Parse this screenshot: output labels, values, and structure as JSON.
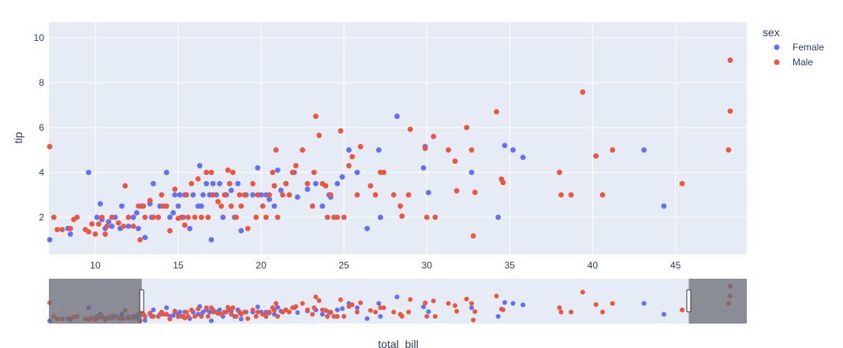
{
  "chart_data": {
    "type": "scatter",
    "xlabel": "total_bill",
    "ylabel": "tip",
    "xlim": [
      7.2,
      49.3
    ],
    "ylim": [
      0.35,
      10.7
    ],
    "xticks": [
      10,
      15,
      20,
      25,
      30,
      35,
      40,
      45
    ],
    "yticks": [
      2,
      4,
      6,
      8,
      10
    ],
    "grid": true,
    "legend": {
      "title": "sex",
      "placement": "top-right"
    },
    "rangeslider": {
      "visible": true,
      "selected_range": [
        12.8,
        45.8
      ]
    },
    "colors": {
      "Female": "#636efa",
      "Male": "#ef553b",
      "plot_bg": "#e5ecf6",
      "mask": "#6b6e74"
    },
    "series": [
      {
        "name": "Female",
        "points": [
          [
            7.25,
            1.0
          ],
          [
            8.35,
            1.5
          ],
          [
            8.5,
            1.25
          ],
          [
            9.6,
            4.0
          ],
          [
            10.1,
            2.0
          ],
          [
            10.3,
            2.6
          ],
          [
            10.4,
            1.9
          ],
          [
            10.6,
            1.5
          ],
          [
            10.8,
            1.8
          ],
          [
            11.0,
            1.6
          ],
          [
            11.2,
            2.0
          ],
          [
            11.5,
            1.5
          ],
          [
            11.6,
            2.5
          ],
          [
            12.0,
            1.6
          ],
          [
            12.3,
            2.0
          ],
          [
            12.5,
            2.2
          ],
          [
            12.6,
            1.5
          ],
          [
            12.8,
            2.5
          ],
          [
            13.0,
            1.1
          ],
          [
            13.3,
            2.6
          ],
          [
            13.4,
            2.0
          ],
          [
            13.5,
            3.5
          ],
          [
            13.8,
            2.0
          ],
          [
            13.9,
            2.5
          ],
          [
            14.3,
            4.0
          ],
          [
            14.5,
            2.0
          ],
          [
            14.7,
            2.2
          ],
          [
            14.8,
            3.0
          ],
          [
            15.0,
            2.5
          ],
          [
            15.1,
            3.0
          ],
          [
            15.3,
            2.0
          ],
          [
            15.4,
            3.0
          ],
          [
            15.7,
            1.5
          ],
          [
            15.9,
            3.0
          ],
          [
            16.2,
            2.5
          ],
          [
            16.3,
            4.3
          ],
          [
            16.4,
            2.5
          ],
          [
            16.5,
            3.0
          ],
          [
            16.7,
            3.5
          ],
          [
            16.9,
            3.0
          ],
          [
            17.0,
            1.0
          ],
          [
            17.1,
            3.5
          ],
          [
            17.3,
            3.0
          ],
          [
            17.5,
            3.5
          ],
          [
            17.7,
            2.0
          ],
          [
            17.9,
            3.0
          ],
          [
            18.2,
            3.2
          ],
          [
            18.4,
            2.0
          ],
          [
            18.6,
            3.5
          ],
          [
            18.8,
            1.4
          ],
          [
            19.1,
            3.0
          ],
          [
            19.5,
            3.0
          ],
          [
            19.8,
            4.2
          ],
          [
            20.0,
            3.0
          ],
          [
            20.3,
            3.0
          ],
          [
            20.5,
            2.8
          ],
          [
            20.8,
            2.5
          ],
          [
            21.0,
            4.1
          ],
          [
            21.2,
            3.2
          ],
          [
            21.5,
            3.5
          ],
          [
            22.0,
            4.0
          ],
          [
            22.2,
            2.9
          ],
          [
            22.8,
            3.25
          ],
          [
            23.3,
            3.5
          ],
          [
            23.7,
            2.5
          ],
          [
            24.1,
            3.0
          ],
          [
            24.2,
            2.9
          ],
          [
            24.6,
            3.5
          ],
          [
            24.9,
            3.8
          ],
          [
            25.3,
            5.0
          ],
          [
            25.8,
            4.0
          ],
          [
            26.4,
            1.5
          ],
          [
            27.1,
            5.0
          ],
          [
            27.2,
            2.0
          ],
          [
            28.2,
            6.5
          ],
          [
            29.8,
            4.2
          ],
          [
            29.9,
            5.15
          ],
          [
            30.1,
            3.1
          ],
          [
            32.7,
            4.0
          ],
          [
            34.3,
            2.0
          ],
          [
            34.7,
            5.2
          ],
          [
            35.2,
            5.0
          ],
          [
            35.8,
            4.67
          ],
          [
            43.1,
            5.0
          ],
          [
            44.3,
            2.5
          ]
        ]
      },
      {
        "name": "Male",
        "points": [
          [
            7.25,
            5.15
          ],
          [
            7.5,
            2.0
          ],
          [
            7.7,
            1.45
          ],
          [
            8.0,
            1.45
          ],
          [
            8.5,
            1.5
          ],
          [
            8.7,
            1.9
          ],
          [
            8.9,
            2.0
          ],
          [
            9.4,
            1.45
          ],
          [
            9.6,
            1.35
          ],
          [
            9.8,
            1.7
          ],
          [
            10.0,
            1.25
          ],
          [
            10.2,
            1.7
          ],
          [
            10.4,
            2.0
          ],
          [
            10.6,
            1.25
          ],
          [
            10.7,
            1.6
          ],
          [
            11.0,
            2.0
          ],
          [
            11.4,
            1.75
          ],
          [
            11.7,
            1.6
          ],
          [
            11.8,
            3.4
          ],
          [
            12.0,
            2.0
          ],
          [
            12.3,
            1.6
          ],
          [
            12.6,
            2.5
          ],
          [
            12.7,
            1.0
          ],
          [
            12.9,
            2.5
          ],
          [
            13.0,
            2.0
          ],
          [
            13.3,
            2.75
          ],
          [
            13.5,
            2.0
          ],
          [
            13.8,
            2.0
          ],
          [
            14.0,
            3.0
          ],
          [
            14.1,
            2.5
          ],
          [
            14.3,
            2.5
          ],
          [
            14.5,
            1.4
          ],
          [
            14.8,
            3.25
          ],
          [
            15.0,
            1.95
          ],
          [
            15.2,
            2.0
          ],
          [
            15.4,
            1.65
          ],
          [
            15.5,
            3.0
          ],
          [
            15.6,
            2.0
          ],
          [
            15.8,
            3.5
          ],
          [
            16.0,
            2.0
          ],
          [
            16.2,
            3.71
          ],
          [
            16.4,
            2.0
          ],
          [
            16.7,
            4.0
          ],
          [
            16.8,
            2.0
          ],
          [
            17.0,
            4.0
          ],
          [
            17.1,
            3.0
          ],
          [
            17.4,
            2.7
          ],
          [
            17.6,
            2.5
          ],
          [
            17.8,
            3.0
          ],
          [
            18.0,
            4.1
          ],
          [
            18.1,
            3.5
          ],
          [
            18.2,
            2.5
          ],
          [
            18.3,
            4.0
          ],
          [
            18.5,
            2.0
          ],
          [
            18.7,
            3.0
          ],
          [
            18.8,
            2.5
          ],
          [
            19.0,
            3.0
          ],
          [
            19.2,
            1.5
          ],
          [
            19.5,
            3.5
          ],
          [
            19.7,
            2.0
          ],
          [
            19.8,
            3.0
          ],
          [
            20.1,
            2.5
          ],
          [
            20.3,
            2.0
          ],
          [
            20.5,
            3.0
          ],
          [
            20.7,
            4.0
          ],
          [
            20.8,
            3.4
          ],
          [
            20.9,
            5.0
          ],
          [
            21.0,
            2.0
          ],
          [
            21.3,
            3.0
          ],
          [
            21.5,
            3.5
          ],
          [
            21.7,
            3.0
          ],
          [
            21.9,
            4.0
          ],
          [
            22.1,
            4.3
          ],
          [
            22.5,
            5.0
          ],
          [
            22.8,
            3.5
          ],
          [
            23.1,
            2.5
          ],
          [
            23.2,
            4.0
          ],
          [
            23.3,
            6.5
          ],
          [
            23.5,
            5.65
          ],
          [
            23.7,
            3.5
          ],
          [
            23.9,
            3.4
          ],
          [
            24.0,
            2.0
          ],
          [
            24.2,
            3.0
          ],
          [
            24.4,
            2.0
          ],
          [
            24.6,
            2.0
          ],
          [
            24.8,
            5.85
          ],
          [
            25.0,
            2.0
          ],
          [
            25.3,
            4.3
          ],
          [
            25.5,
            4.7
          ],
          [
            25.8,
            3.0
          ],
          [
            26.0,
            5.15
          ],
          [
            26.6,
            3.4
          ],
          [
            26.9,
            3.0
          ],
          [
            27.2,
            4.0
          ],
          [
            27.4,
            4.0
          ],
          [
            28.0,
            3.0
          ],
          [
            28.4,
            2.5
          ],
          [
            28.5,
            2.05
          ],
          [
            28.9,
            3.0
          ],
          [
            29.0,
            5.92
          ],
          [
            29.9,
            5.07
          ],
          [
            30.0,
            2.0
          ],
          [
            30.4,
            5.6
          ],
          [
            30.5,
            2.0
          ],
          [
            31.3,
            5.0
          ],
          [
            31.7,
            4.5
          ],
          [
            31.8,
            3.18
          ],
          [
            32.4,
            6.0
          ],
          [
            32.7,
            5.0
          ],
          [
            32.8,
            1.17
          ],
          [
            32.9,
            3.11
          ],
          [
            34.2,
            6.7
          ],
          [
            34.5,
            3.7
          ],
          [
            34.6,
            3.55
          ],
          [
            38.0,
            4.0
          ],
          [
            38.1,
            3.0
          ],
          [
            38.7,
            3.0
          ],
          [
            39.4,
            7.58
          ],
          [
            40.2,
            4.73
          ],
          [
            40.6,
            3.0
          ],
          [
            41.2,
            5.0
          ],
          [
            45.4,
            3.5
          ],
          [
            48.2,
            5.0
          ],
          [
            48.3,
            6.73
          ],
          [
            48.3,
            9.0
          ]
        ]
      }
    ]
  }
}
